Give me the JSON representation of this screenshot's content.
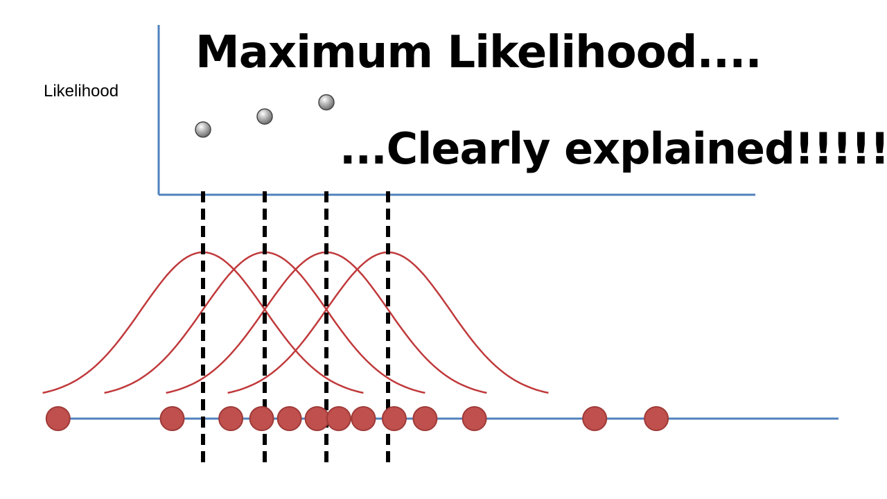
{
  "title": "Maximum Likelihood....",
  "subtitle": "...Clearly explained!!!!!!",
  "likelihood_axis_label": "Likelihood",
  "colors": {
    "axis": "#4f81bd",
    "curve": "#c0393b",
    "data_point_fill": "#c0504d",
    "data_point_stroke": "#9e3a38",
    "dashed_line": "#000000",
    "likelihood_point": "#6b6b6b"
  },
  "data_points": [
    -1.5,
    0.35,
    1.3,
    1.8,
    2.25,
    2.7,
    3.05,
    3.45,
    3.95,
    4.45,
    5.25,
    7.2,
    8.2
  ],
  "candidate_means": [
    0.85,
    1.85,
    2.85,
    3.85
  ],
  "likelihoods": [
    0.55,
    0.66,
    0.78
  ]
}
